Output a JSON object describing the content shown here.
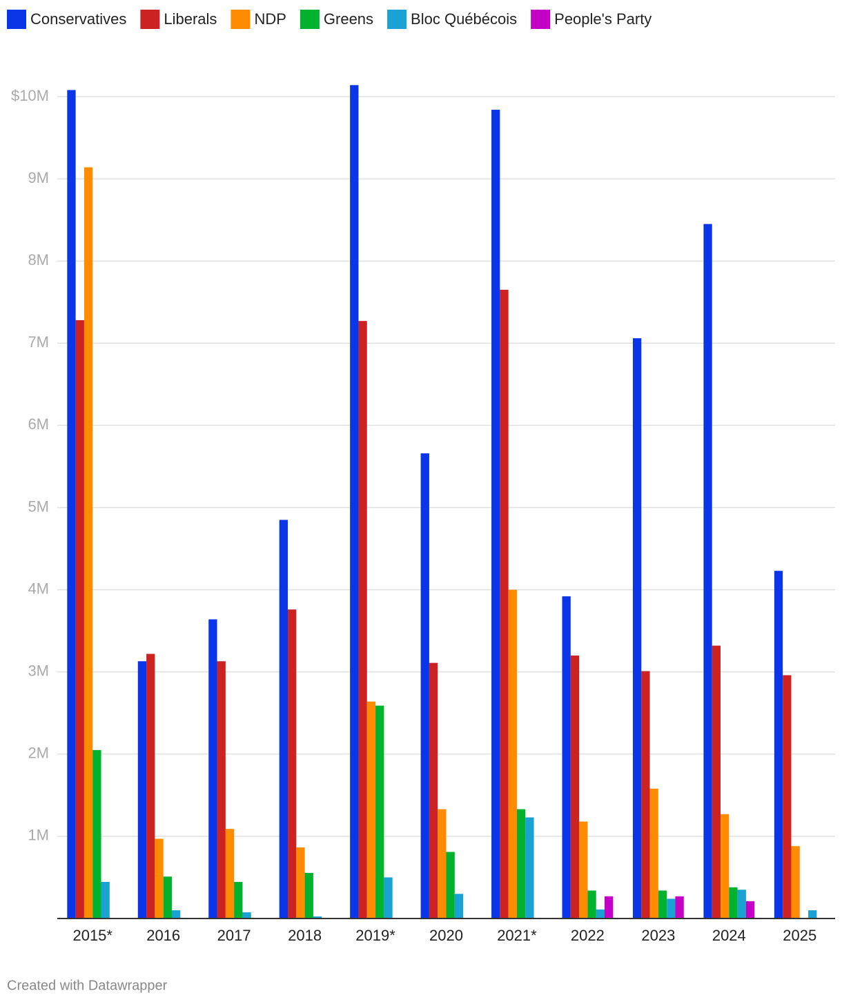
{
  "chart_data": {
    "type": "bar",
    "categories": [
      "2015*",
      "2016",
      "2017",
      "2018",
      "2019*",
      "2020",
      "2021*",
      "2022",
      "2023",
      "2024",
      "2025"
    ],
    "series": [
      {
        "name": "Conservatives",
        "color": "#0a35e8",
        "values": [
          10080000,
          3130000,
          3640000,
          4850000,
          10140000,
          5660000,
          9840000,
          3920000,
          7060000,
          8450000,
          4230000
        ]
      },
      {
        "name": "Liberals",
        "color": "#cc2222",
        "values": [
          7280000,
          3220000,
          3130000,
          3760000,
          7270000,
          3110000,
          7650000,
          3200000,
          3010000,
          3320000,
          2960000
        ]
      },
      {
        "name": "NDP",
        "color": "#ff8c00",
        "values": [
          9140000,
          970000,
          1090000,
          865000,
          2640000,
          1330000,
          4000000,
          1180000,
          1580000,
          1270000,
          880000
        ]
      },
      {
        "name": "Greens",
        "color": "#00b22d",
        "values": [
          2050000,
          510000,
          445000,
          555000,
          2590000,
          810000,
          1330000,
          340000,
          340000,
          380000,
          null
        ]
      },
      {
        "name": "Bloc Québécois",
        "color": "#1ba2d4",
        "values": [
          445000,
          100000,
          75000,
          25000,
          500000,
          300000,
          1230000,
          110000,
          240000,
          350000,
          100000
        ]
      },
      {
        "name": "People's Party",
        "color": "#c400c4",
        "values": [
          null,
          null,
          null,
          null,
          null,
          null,
          null,
          270000,
          270000,
          210000,
          null
        ]
      }
    ],
    "ylim": [
      0,
      10000000
    ],
    "yticks": [
      {
        "value": 1000000,
        "label": "1M"
      },
      {
        "value": 2000000,
        "label": "2M"
      },
      {
        "value": 3000000,
        "label": "3M"
      },
      {
        "value": 4000000,
        "label": "4M"
      },
      {
        "value": 5000000,
        "label": "5M"
      },
      {
        "value": 6000000,
        "label": "6M"
      },
      {
        "value": 7000000,
        "label": "7M"
      },
      {
        "value": 8000000,
        "label": "8M"
      },
      {
        "value": 9000000,
        "label": "9M"
      },
      {
        "value": 10000000,
        "label": "$10M"
      }
    ],
    "grid": true,
    "legend": "top"
  },
  "footer": "Created with Datawrapper"
}
